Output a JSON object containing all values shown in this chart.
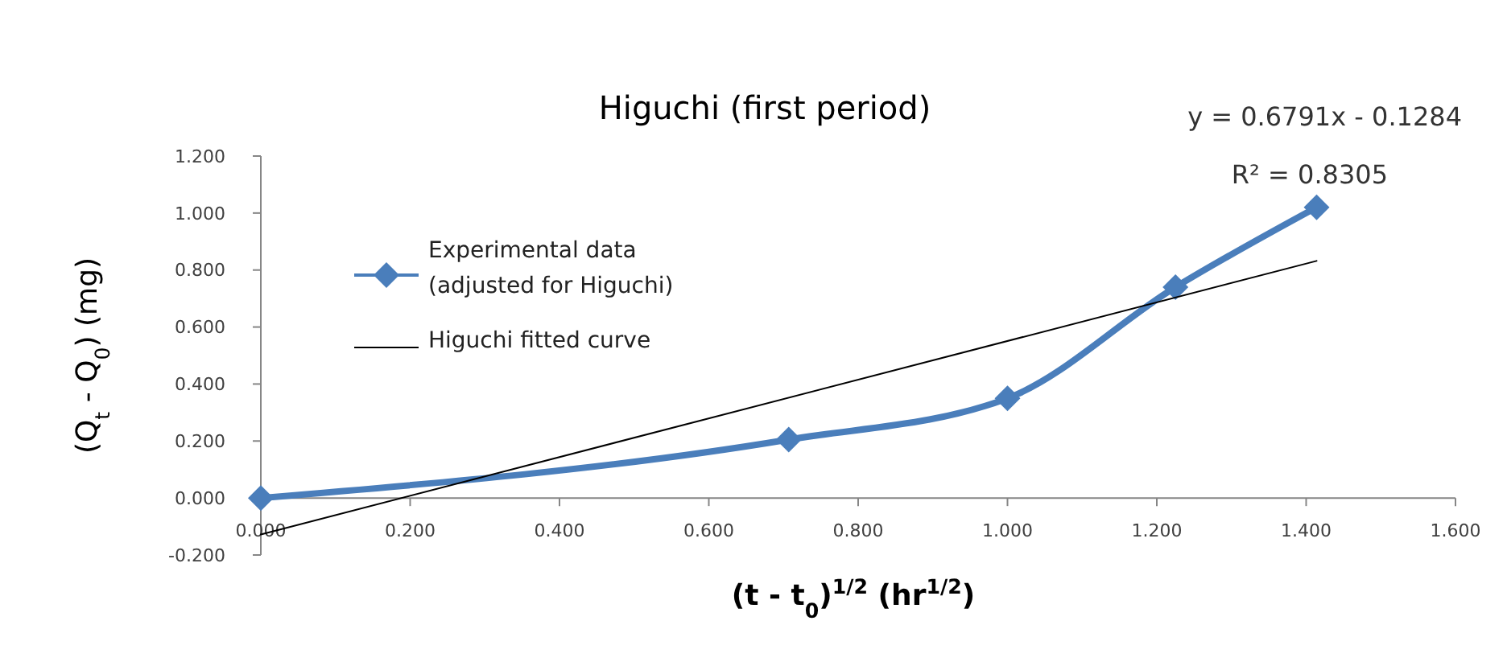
{
  "chart_data": {
    "type": "line",
    "title": "Higuchi (first period)",
    "xlabel": "(t - t$_{0}$)$^{1/2}$ (hr$^{1/2}$)",
    "ylabel": "(Q$_{t}$ - Q$_{0}$) (mg)",
    "xlim": [
      0,
      1.6
    ],
    "xticks": [
      {
        "value": 0,
        "label": "0.000"
      },
      {
        "value": 0.2,
        "label": "0.200"
      },
      {
        "value": 0.4,
        "label": "0.400"
      },
      {
        "value": 0.6,
        "label": "0.600"
      },
      {
        "value": 0.8,
        "label": "0.800"
      },
      {
        "value": 1,
        "label": "1.000"
      },
      {
        "value": 1.2,
        "label": "1.200"
      },
      {
        "value": 1.4,
        "label": "1.400"
      },
      {
        "value": 1.6,
        "label": "1.600"
      }
    ],
    "ylim": [
      -0.2,
      1.2
    ],
    "yticks": [
      {
        "value": -0.2,
        "label": "-0.200"
      },
      {
        "value": 0,
        "label": "0.000"
      },
      {
        "value": 0.2,
        "label": "0.200"
      },
      {
        "value": 0.4,
        "label": "0.400"
      },
      {
        "value": 0.6,
        "label": "0.600"
      },
      {
        "value": 0.8,
        "label": "0.800"
      },
      {
        "value": 1,
        "label": "1.000"
      },
      {
        "value": 1.2,
        "label": "1.200"
      }
    ],
    "grid": false,
    "legend": "left",
    "line_style": "solid",
    "series": [
      {
        "name": "Experimental data (adjusted for Higuchi)",
        "color": "#4a7ebb",
        "marker": "diamond",
        "x": [
          0,
          0.707,
          1.0,
          1.225,
          1.414
        ],
        "values": [
          0,
          0.205,
          0.35,
          0.74,
          1.02
        ]
      },
      {
        "name": "Higuchi fitted curve",
        "color": "#000000",
        "marker": "none",
        "x": [
          0,
          1.414
        ],
        "values": [
          -0.128,
          0.832
        ]
      }
    ],
    "annotations": [
      "y = 0.6791x - 0.1284",
      "R² = 0.8305"
    ]
  }
}
